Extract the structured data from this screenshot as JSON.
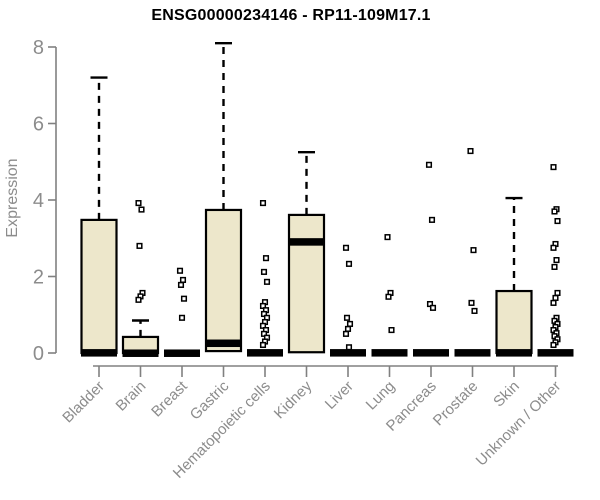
{
  "chart_data": {
    "type": "boxplot",
    "title": "ENSG00000234146 - RP11-109M17.1",
    "ylabel": "Expression",
    "ylim": [
      0,
      8
    ],
    "yticks": [
      0,
      2,
      4,
      6,
      8
    ],
    "grid": false,
    "legend": "none",
    "box_fill_color": "#ede7cb",
    "box_line_color": "#000000",
    "axis_color": "#808080",
    "label_color": "#8c8c8c",
    "categories": [
      "Bladder",
      "Brain",
      "Breast",
      "Gastric",
      "Hematopoietic cells",
      "Kidney",
      "Liver",
      "Lung",
      "Pancreas",
      "Prostate",
      "Skin",
      "Unknown / Other"
    ],
    "boxes": [
      {
        "category": "Bladder",
        "min": 0,
        "q1": 0,
        "median": 0.05,
        "q3": 3.48,
        "max": 7.2,
        "outliers": []
      },
      {
        "category": "Brain",
        "min": 0,
        "q1": 0,
        "median": 0.04,
        "q3": 0.42,
        "max": 0.85,
        "outliers": [
          3.92,
          3.75,
          2.8,
          1.57,
          1.48,
          1.39
        ]
      },
      {
        "category": "Breast",
        "min": 0,
        "q1": 0,
        "median": 0.04,
        "q3": 0,
        "max": 0,
        "outliers": [
          2.15,
          1.91,
          1.78,
          1.42,
          0.92
        ]
      },
      {
        "category": "Gastric",
        "min": 0.05,
        "q1": 0.05,
        "median": 0.3,
        "q3": 3.74,
        "max": 8.1,
        "outliers": []
      },
      {
        "category": "Hematopoietic cells",
        "min": 0,
        "q1": 0,
        "median": 0.05,
        "q3": 0,
        "max": 0,
        "outliers": [
          3.92,
          2.48,
          2.12,
          1.86,
          1.33,
          1.23,
          1.12,
          1.02,
          0.92,
          0.81,
          0.71,
          0.6,
          0.5,
          0.4,
          0.3,
          0.21
        ]
      },
      {
        "category": "Kidney",
        "min": 0,
        "q1": 0.02,
        "median": 2.95,
        "q3": 3.61,
        "max": 5.25,
        "outliers": []
      },
      {
        "category": "Liver",
        "min": 0,
        "q1": 0,
        "median": 0.05,
        "q3": 0,
        "max": 0,
        "outliers": [
          2.75,
          2.33,
          0.92,
          0.76,
          0.63,
          0.5,
          0.15
        ]
      },
      {
        "category": "Lung",
        "min": 0,
        "q1": 0,
        "median": 0.05,
        "q3": 0,
        "max": 0,
        "outliers": [
          3.03,
          1.57,
          1.47,
          0.6
        ]
      },
      {
        "category": "Pancreas",
        "min": 0,
        "q1": 0,
        "median": 0.05,
        "q3": 0,
        "max": 0,
        "outliers": [
          4.92,
          3.48,
          1.28,
          1.18
        ]
      },
      {
        "category": "Prostate",
        "min": 0,
        "q1": 0,
        "median": 0.05,
        "q3": 0,
        "max": 0,
        "outliers": [
          5.28,
          2.69,
          1.31,
          1.1
        ]
      },
      {
        "category": "Skin",
        "min": 0,
        "q1": 0,
        "median": 0.05,
        "q3": 1.62,
        "max": 4.05,
        "outliers": []
      },
      {
        "category": "Unknown / Other",
        "min": 0,
        "q1": 0,
        "median": 0.05,
        "q3": 0,
        "max": 0,
        "outliers": [
          4.86,
          3.76,
          3.7,
          3.45,
          2.85,
          2.75,
          2.43,
          2.25,
          1.57,
          1.44,
          1.31,
          0.92,
          0.84,
          0.76,
          0.68,
          0.6,
          0.52,
          0.44,
          0.36,
          0.28,
          0.21
        ]
      }
    ]
  }
}
